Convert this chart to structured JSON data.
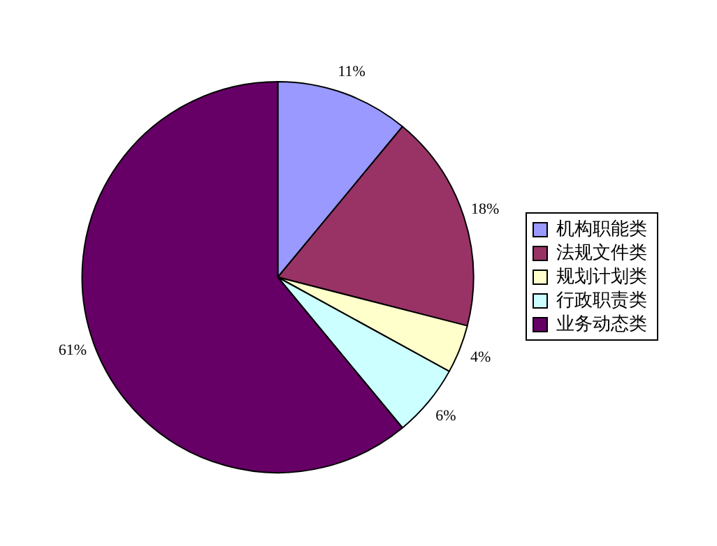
{
  "chart_data": {
    "type": "pie",
    "categories": [
      "机构职能类",
      "法规文件类",
      "规划计划类",
      "行政职责类",
      "业务动态类"
    ],
    "values": [
      11,
      18,
      4,
      6,
      61
    ],
    "colors": [
      "#9999ff",
      "#993366",
      "#ffffcc",
      "#ccffff",
      "#660066"
    ],
    "value_labels": [
      "11%",
      "18%",
      "4%",
      "6%",
      "61%"
    ],
    "legend": "right"
  }
}
